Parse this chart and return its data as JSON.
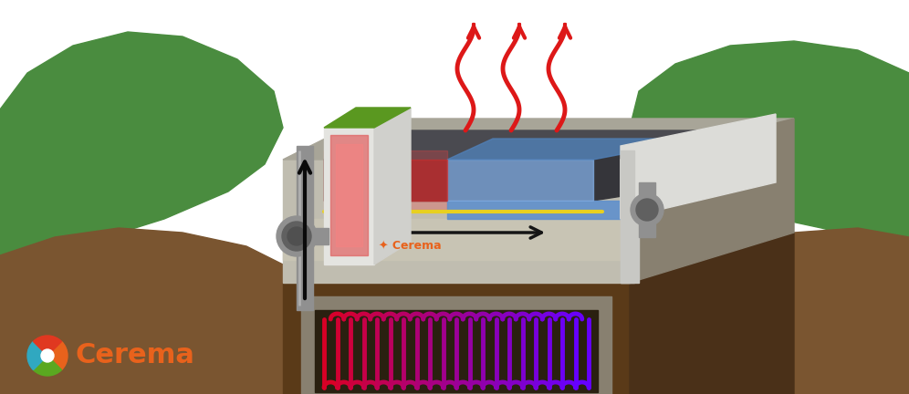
{
  "fig_width": 9.96,
  "fig_height": 4.32,
  "dpi": 100,
  "bg_color": "#ffffff",
  "hill_color": "#4a8c3f",
  "ground_brown": "#7a5530",
  "ground_dark": "#5a3a18",
  "concrete_light": "#c0bdb0",
  "concrete_mid": "#a8a598",
  "concrete_dark": "#888070",
  "asphalt_top": "#4a4a50",
  "asphalt_side": "#35353a",
  "asphalt_dark": "#282830",
  "wall_white": "#e0e0dc",
  "wall_gray": "#c8c8c4",
  "pipe_gray": "#909090",
  "pipe_dark": "#606060",
  "blue_panel": "#6090cc",
  "blue_panel_light": "#80aade",
  "red_glow": "#e03030",
  "yellow_line": "#e8d020",
  "cerema_orange": "#e8621c",
  "cerema_green": "#5aa820",
  "cerema_teal": "#30a8c0",
  "cerema_red": "#e03820",
  "heat_red": "#dd1818"
}
